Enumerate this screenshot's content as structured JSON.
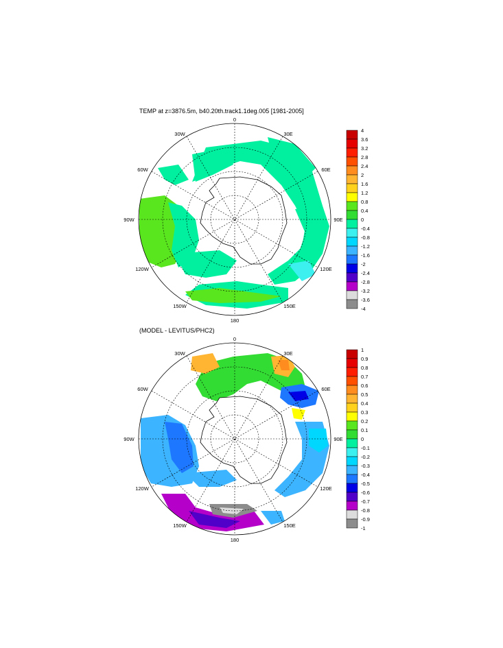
{
  "top_panel": {
    "title": "TEMP at z=3876.5m, b40.20th.track1.1deg.005 [1981-2005]",
    "lon_labels": [
      "0",
      "30E",
      "60E",
      "90E",
      "120E",
      "150E",
      "180",
      "150W",
      "120W",
      "90W",
      "60W",
      "30W"
    ],
    "colorbar": {
      "labels": [
        "4",
        "3.6",
        "3.2",
        "2.8",
        "2.4",
        "2",
        "1.6",
        "1.2",
        "0.8",
        "0.4",
        "0",
        "-0.4",
        "-0.8",
        "-1.2",
        "-1.6",
        "-2",
        "-2.4",
        "-2.8",
        "-3.2",
        "-3.6",
        "-4"
      ],
      "colors": [
        "#c80000",
        "#e60000",
        "#ff1e00",
        "#ff5000",
        "#ff8c1e",
        "#ffb432",
        "#ffd21e",
        "#ffff00",
        "#5ae61e",
        "#32dc32",
        "#00f0a0",
        "#3cf0f0",
        "#00d7ff",
        "#3cb4ff",
        "#1e78ff",
        "#0000e6",
        "#5000c8",
        "#b400c8",
        "#dcdcdc",
        "#8c8c8c"
      ]
    }
  },
  "bottom_panel": {
    "title": "(MODEL - LEVITUS/PHC2)",
    "lon_labels": [
      "0",
      "30E",
      "60E",
      "90E",
      "120E",
      "150E",
      "180",
      "150W",
      "120W",
      "90W",
      "60W",
      "30W"
    ],
    "colorbar": {
      "labels": [
        "1",
        "0.9",
        "0.8",
        "0.7",
        "0.6",
        "0.5",
        "0.4",
        "0.3",
        "0.2",
        "0.1",
        "0",
        "-0.1",
        "-0.2",
        "-0.3",
        "-0.4",
        "-0.5",
        "-0.6",
        "-0.7",
        "-0.8",
        "-0.9",
        "-1"
      ],
      "colors": [
        "#c80000",
        "#e60000",
        "#ff1e00",
        "#ff5000",
        "#ff8c1e",
        "#ffb432",
        "#ffd21e",
        "#ffff00",
        "#5ae61e",
        "#32dc32",
        "#00f0a0",
        "#3cf0f0",
        "#00d7ff",
        "#3cb4ff",
        "#1e78ff",
        "#0000e6",
        "#5000c8",
        "#b400c8",
        "#dcdcdc",
        "#8c8c8c"
      ]
    }
  }
}
